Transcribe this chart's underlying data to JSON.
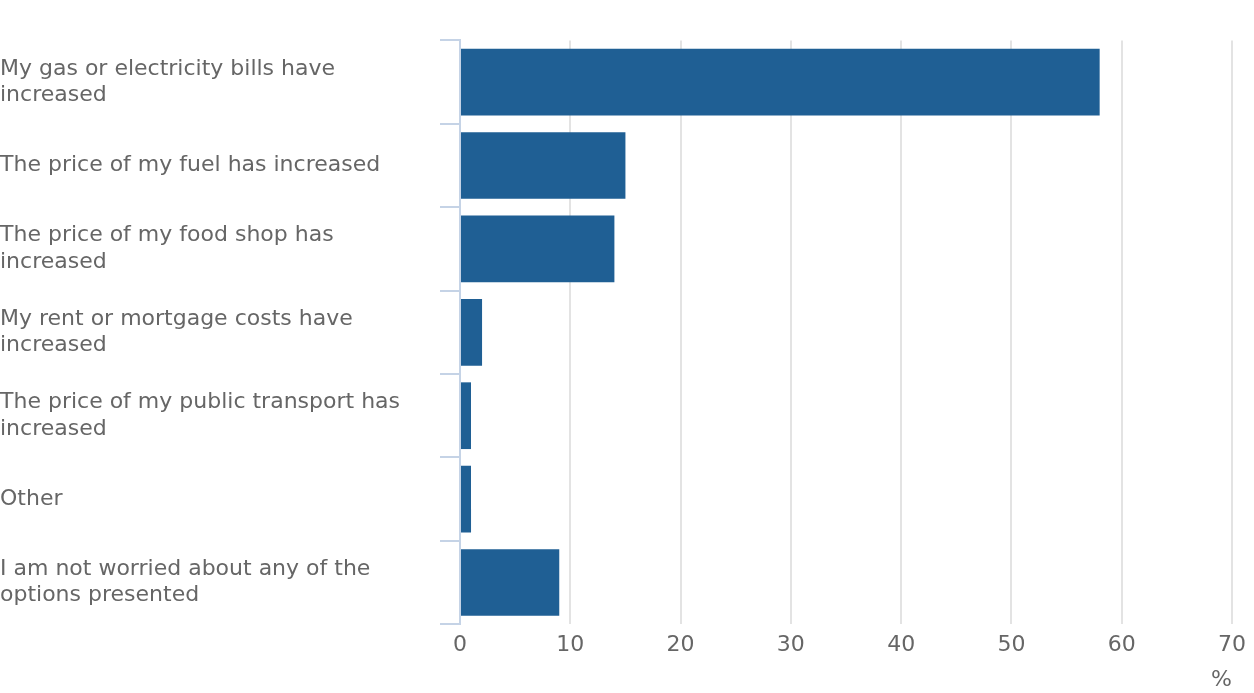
{
  "chart_data": {
    "type": "bar",
    "orientation": "horizontal",
    "categories": [
      "My gas or electricity bills have increased",
      "The price of my fuel has increased",
      "The price of my food shop has increased",
      "My rent or mortgage costs have increased",
      "The price of my public transport has increased",
      "Other",
      "I am not worried about any of the options presented"
    ],
    "values": [
      58,
      15,
      14,
      2,
      1,
      1,
      9
    ],
    "color": "#1f5f94",
    "xlim": [
      0,
      70
    ],
    "xticks": [
      0,
      10,
      20,
      30,
      40,
      50,
      60,
      70
    ],
    "xlabel": "%",
    "grid": "x",
    "legend": false
  }
}
